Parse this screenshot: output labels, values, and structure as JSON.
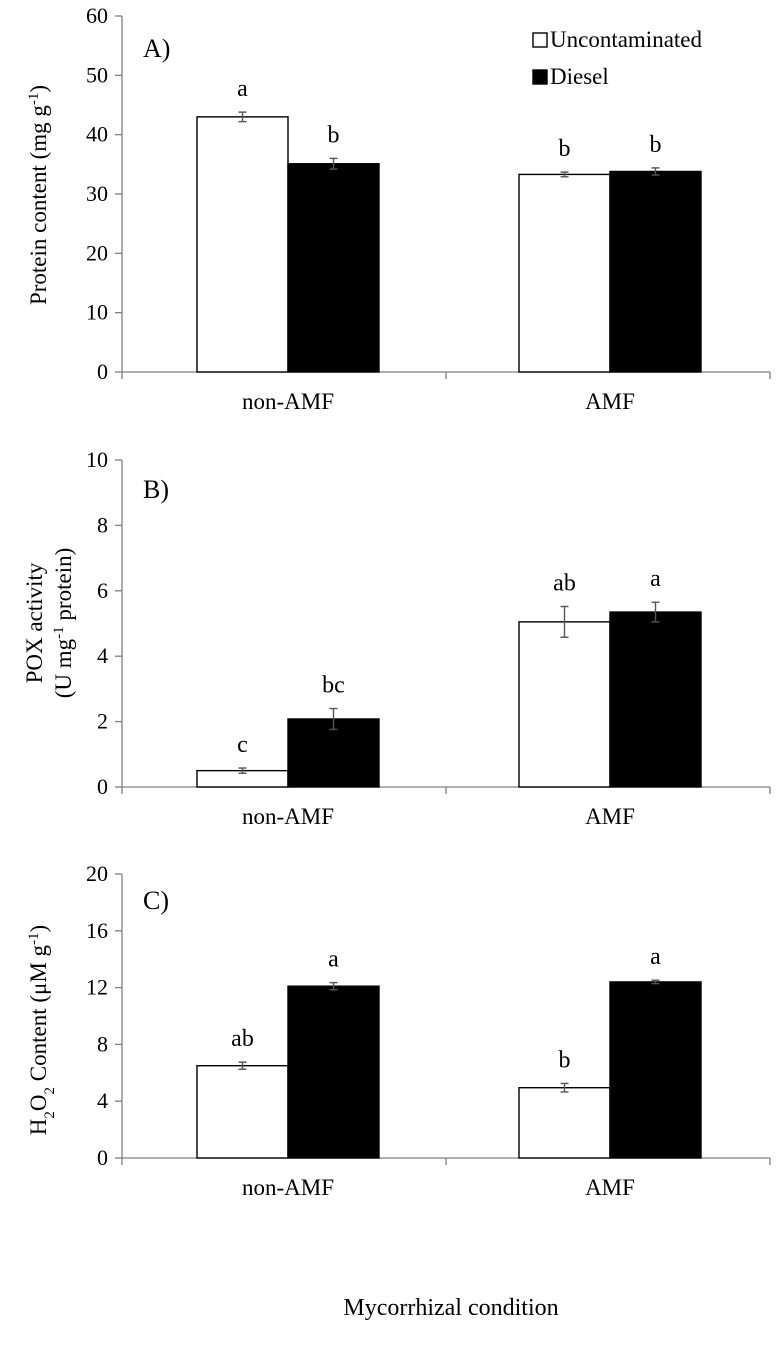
{
  "chart_data": [
    {
      "type": "bar",
      "panel_label": "A)",
      "categories": [
        "non-AMF",
        "AMF"
      ],
      "ylabel": "Protein content (mg g-1)",
      "ylabel_main": "Protein content (mg g",
      "ylabel_sup": "-1",
      "ylabel_end": ")",
      "ylim": [
        0,
        60
      ],
      "yticks": [
        "0",
        "10",
        "20",
        "30",
        "40",
        "50",
        "60"
      ],
      "series": [
        {
          "name": "Uncontaminated",
          "values": [
            43.0,
            33.3
          ],
          "errors": [
            0.8,
            0.4
          ],
          "letters": [
            "a",
            "b"
          ]
        },
        {
          "name": "Diesel",
          "values": [
            35.1,
            33.8
          ],
          "errors": [
            0.9,
            0.6
          ],
          "letters": [
            "b",
            "b"
          ]
        }
      ],
      "legend": [
        "Uncontaminated",
        "Diesel"
      ],
      "legend_position": "top-right"
    },
    {
      "type": "bar",
      "panel_label": "B)",
      "categories": [
        "non-AMF",
        "AMF"
      ],
      "ylabel": "POX activity (U mg-1 protein)",
      "ylabel_line1": "POX activity",
      "ylabel_line2_pre": "(U mg",
      "ylabel_line2_sup": "-1",
      "ylabel_line2_post": " protein)",
      "ylim": [
        0,
        10
      ],
      "yticks": [
        "0",
        "2",
        "4",
        "6",
        "8",
        "10"
      ],
      "series": [
        {
          "name": "Uncontaminated",
          "values": [
            0.5,
            5.05
          ],
          "errors": [
            0.08,
            0.47
          ],
          "letters": [
            "c",
            "ab"
          ]
        },
        {
          "name": "Diesel",
          "values": [
            2.08,
            5.35
          ],
          "errors": [
            0.32,
            0.3
          ],
          "letters": [
            "bc",
            "a"
          ]
        }
      ]
    },
    {
      "type": "bar",
      "panel_label": "C)",
      "categories": [
        "non-AMF",
        "AMF"
      ],
      "ylabel": "H2O2 Content (μM g-1)",
      "ylabel_a": "H",
      "ylabel_sub1": "2",
      "ylabel_b": "O",
      "ylabel_sub2": "2",
      "ylabel_c": " Content (μM g",
      "ylabel_sup": "-1",
      "ylabel_d": ")",
      "ylim": [
        0,
        20
      ],
      "yticks": [
        "0",
        "4",
        "8",
        "12",
        "16",
        "20"
      ],
      "series": [
        {
          "name": "Uncontaminated",
          "values": [
            6.5,
            4.95
          ],
          "errors": [
            0.25,
            0.3
          ],
          "letters": [
            "ab",
            "b"
          ]
        },
        {
          "name": "Diesel",
          "values": [
            12.1,
            12.4
          ],
          "errors": [
            0.25,
            0.12
          ],
          "letters": [
            "a",
            "a"
          ]
        }
      ],
      "xlabel": "Mycorrhizal condition"
    }
  ]
}
